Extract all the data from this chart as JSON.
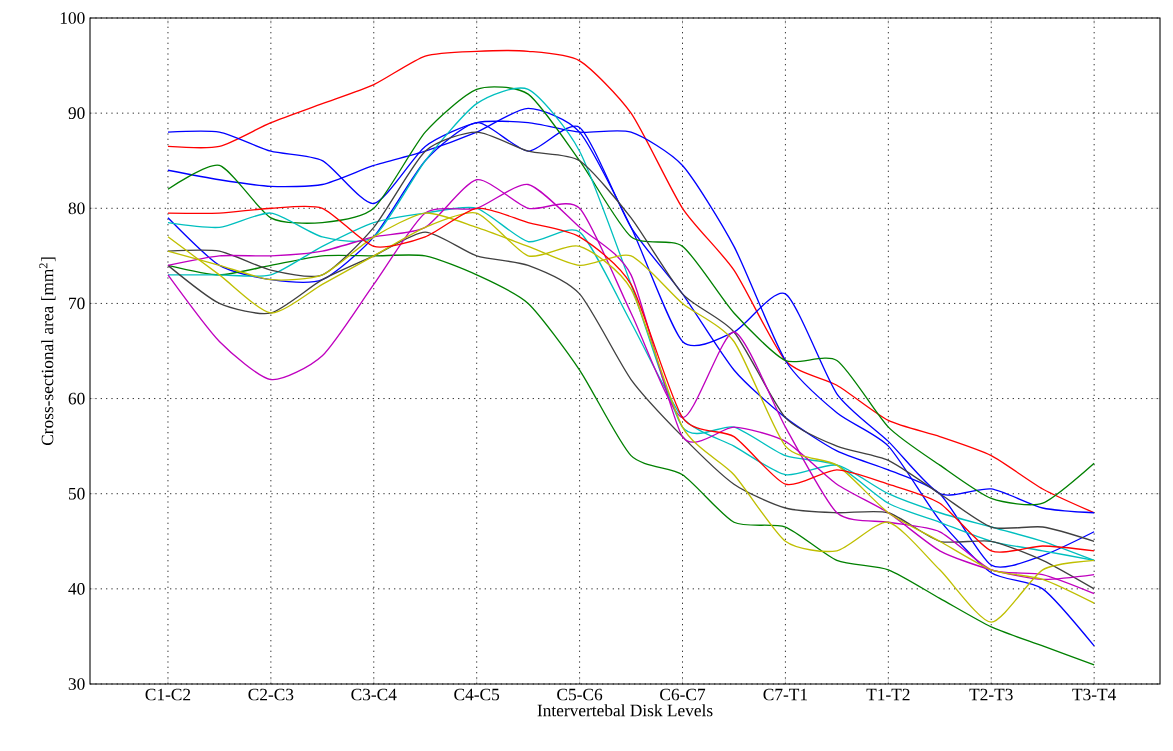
{
  "chart_data": {
    "type": "line",
    "xlabel": "Intervertebal Disk Levels",
    "ylabel": "Cross-sectional area [mm$^{2}$]",
    "categories": [
      "C1-C2",
      null,
      "C2-C3",
      null,
      "C3-C4",
      null,
      "C4-C5",
      null,
      "C5-C6",
      null,
      "C6-C7",
      null,
      "C7-T1",
      null,
      "T1-T2",
      null,
      "T2-T3",
      null,
      "T3-T4"
    ],
    "ylim": [
      30,
      100
    ],
    "yticks": [
      30,
      40,
      50,
      60,
      70,
      80,
      90,
      100
    ],
    "grid": true,
    "line_style": "solid",
    "series": [
      {
        "color": "#ff0000",
        "values": [
          86.5,
          86.5,
          89,
          91,
          93,
          96,
          96.5,
          96.5,
          95.5,
          90,
          80,
          73.5,
          64,
          61.4,
          57.7,
          56,
          54,
          50.5,
          48
        ]
      },
      {
        "color": "#0000ff",
        "values": [
          88,
          88,
          86,
          85,
          80.5,
          86.5,
          89,
          89,
          88,
          88,
          84.5,
          76,
          64,
          58.5,
          55,
          47.2,
          41.7,
          40,
          34
        ]
      },
      {
        "color": "#0000ff",
        "values": [
          84,
          83,
          82.3,
          82.5,
          84.5,
          86,
          88,
          90.5,
          88,
          78,
          66,
          67,
          71,
          60.5,
          55.5,
          50,
          50.5,
          48.5,
          48
        ]
      },
      {
        "color": "#0000ff",
        "values": [
          79,
          74,
          72.5,
          72.5,
          77,
          85,
          89,
          86,
          88.5,
          78,
          71,
          63,
          58,
          54.5,
          52.5,
          50,
          42.5,
          43.5,
          46
        ]
      },
      {
        "color": "#008000",
        "values": [
          82,
          84.5,
          79,
          78.5,
          80,
          88,
          92.5,
          92,
          85,
          77,
          76,
          69,
          64,
          64,
          57,
          53,
          49.5,
          49,
          53.2
        ]
      },
      {
        "color": "#008000",
        "values": [
          74,
          73,
          74,
          75,
          75,
          75,
          73,
          70,
          63,
          54,
          52,
          47,
          46.5,
          43,
          42,
          39,
          36,
          34,
          32
        ]
      },
      {
        "color": "#00bfbf",
        "values": [
          78.5,
          78,
          79.5,
          77,
          77,
          85,
          91,
          92.5,
          86,
          72,
          57,
          57,
          54,
          53,
          49,
          47,
          45,
          44,
          43
        ]
      },
      {
        "color": "#00bfbf",
        "values": [
          73,
          73,
          73,
          76,
          78.5,
          79.5,
          80,
          76.5,
          77.5,
          68,
          58,
          55,
          52,
          53,
          50,
          48,
          46.5,
          45,
          43
        ]
      },
      {
        "color": "#404040",
        "values": [
          75.5,
          75.5,
          73.5,
          73,
          78,
          86,
          88,
          86,
          85,
          79,
          71,
          67,
          58,
          55,
          53.5,
          50,
          46.5,
          46.5,
          45
        ]
      },
      {
        "color": "#404040",
        "values": [
          74,
          70,
          69,
          72.5,
          75,
          77.5,
          75,
          74,
          71,
          62,
          56,
          51,
          48.5,
          48,
          48,
          45,
          45,
          43,
          40
        ]
      },
      {
        "color": "#bf00bf",
        "values": [
          73,
          66,
          62,
          64.5,
          72,
          79.5,
          80,
          82.5,
          78,
          73,
          56,
          57,
          55.5,
          51,
          48,
          44,
          42,
          41,
          41.5
        ]
      },
      {
        "color": "#bf00bf",
        "values": [
          74,
          75,
          75,
          75.5,
          77,
          78,
          83,
          80,
          80,
          69,
          58,
          67,
          57,
          48,
          47,
          46,
          42,
          41.5,
          39.5
        ]
      },
      {
        "color": "#bfbf00",
        "values": [
          77,
          73,
          69,
          72,
          75,
          78,
          79.5,
          75,
          76,
          71.5,
          57,
          52,
          45,
          44,
          47,
          42,
          36.5,
          42,
          43
        ]
      },
      {
        "color": "#bfbf00",
        "values": [
          75.5,
          74,
          72.5,
          73,
          77,
          79.5,
          78,
          76,
          74,
          75,
          70,
          66,
          55,
          53,
          48,
          45,
          42,
          41,
          38.5
        ]
      },
      {
        "color": "#ff0000",
        "values": [
          79.5,
          79.5,
          80,
          80,
          76,
          77,
          80,
          78.5,
          77,
          72,
          58,
          56,
          51,
          52.5,
          51,
          49,
          44,
          44.5,
          44
        ]
      }
    ]
  }
}
